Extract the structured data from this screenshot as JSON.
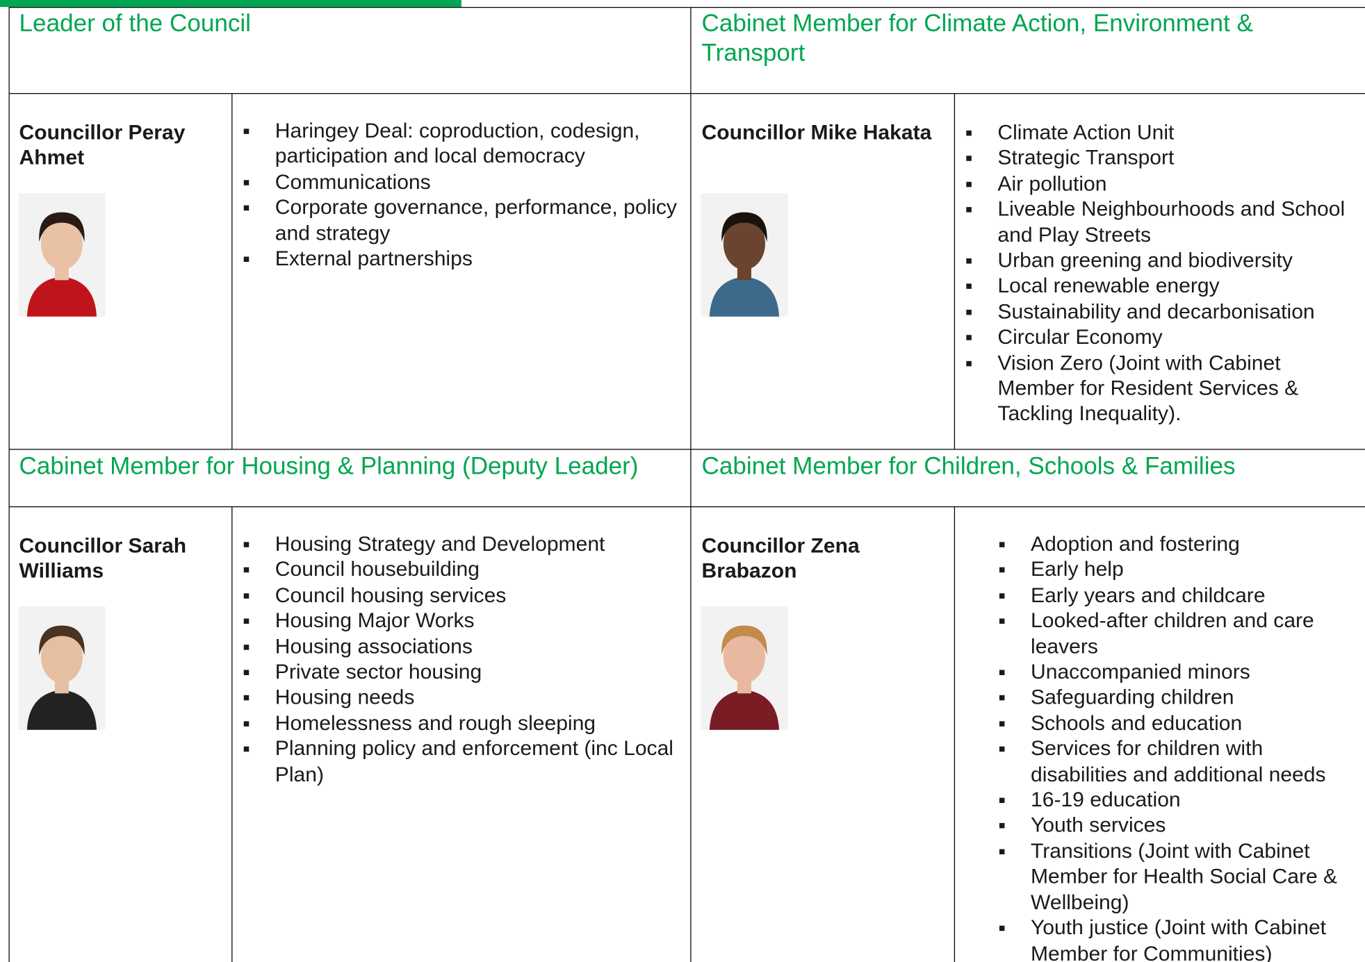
{
  "sections": [
    {
      "heading": "Leader of the Council",
      "name": "Councillor Peray Ahmet",
      "responsibilities": [
        "Haringey Deal: coproduction, codesign, participation and local democracy",
        "Communications",
        "Corporate governance, performance, policy and strategy",
        "External partnerships"
      ]
    },
    {
      "heading": "Cabinet Member for Climate Action, Environment & Transport",
      "name": "Councillor Mike Hakata",
      "responsibilities": [
        "Climate Action Unit",
        "Strategic Transport",
        "Air pollution",
        "Liveable Neighbourhoods and School and Play Streets",
        "Urban greening and biodiversity",
        "Local renewable energy",
        "Sustainability and decarbonisation",
        "Circular Economy",
        "Vision Zero (Joint with Cabinet Member for Resident Services & Tackling Inequality)."
      ]
    },
    {
      "heading": "Cabinet Member for Housing & Planning (Deputy Leader)",
      "name": "Councillor Sarah Williams",
      "responsibilities": [
        "Housing Strategy and Development",
        "Council housebuilding",
        "Council housing services",
        "Housing Major Works",
        "Housing associations",
        "Private sector housing",
        "Housing needs",
        "Homelessness and rough sleeping",
        "Planning policy and enforcement (inc Local Plan)"
      ]
    },
    {
      "heading": "Cabinet Member for Children, Schools & Families",
      "name": "Councillor Zena Brabazon",
      "responsibilities": [
        "Adoption and fostering",
        "Early help",
        "Early years and childcare",
        "Looked-after children and care leavers",
        "Unaccompanied minors",
        "Safeguarding children",
        "Schools and education",
        "Services for children with disabilities and additional needs",
        "16-19 education",
        "Youth services",
        "Transitions (Joint with Cabinet Member for Health Social Care & Wellbeing)",
        "Youth justice (Joint with Cabinet Member for Communities)"
      ]
    }
  ]
}
